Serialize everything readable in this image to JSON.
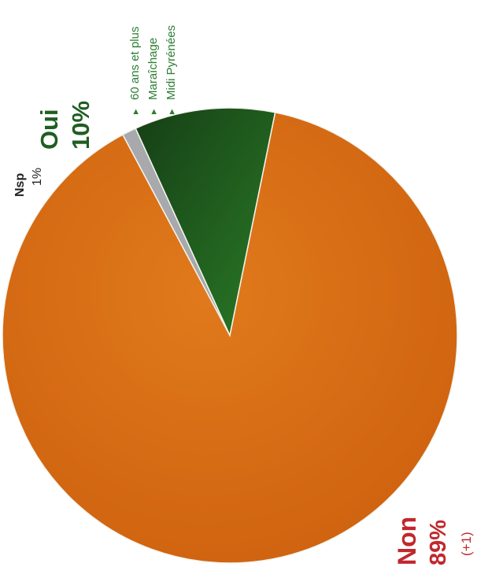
{
  "chart_data": {
    "type": "pie",
    "title": "",
    "rotation": "page rotated 90° counter-clockwise",
    "slices": [
      {
        "label": "Non",
        "value": 89,
        "value_text": "89%",
        "change_text": "(+1)",
        "color": "#d96a14",
        "label_color": "#c0282d"
      },
      {
        "label": "Oui",
        "value": 10,
        "value_text": "10%",
        "color": "#1f5e20",
        "label_color": "#1f5e20"
      },
      {
        "label": "Nsp",
        "value": 1,
        "value_text": "1%",
        "color": "#a7a9ac",
        "label_color": "#222222"
      }
    ],
    "annotations": {
      "slice": "Oui",
      "bullet_glyph": "▸",
      "color": "#2e7d32",
      "items": [
        "60 ans et plus",
        "Maraîchage",
        "Midi Pyrénées"
      ]
    }
  }
}
